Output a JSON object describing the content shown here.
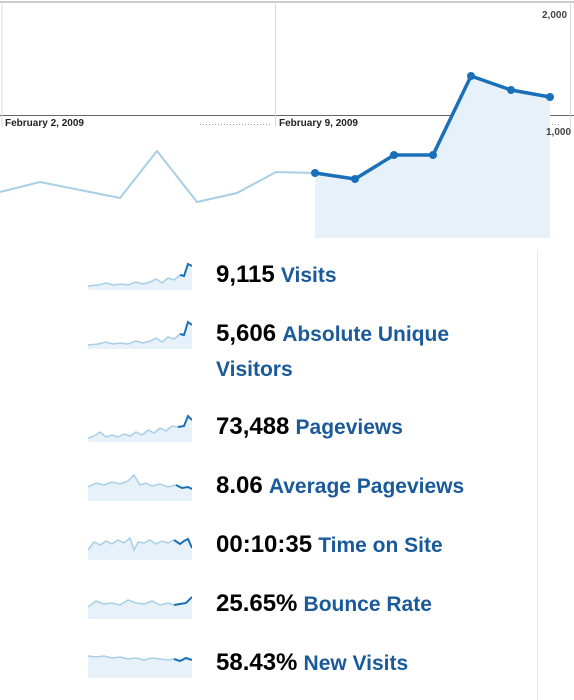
{
  "colors": {
    "line_dark": "#1a70b8",
    "line_light": "#a8cfe6",
    "area_fill": "#e6f1f9",
    "grid": "#bbbbbb",
    "label": "#1a5a9a"
  },
  "chart": {
    "y_ticks": [
      "2,000",
      "1,000"
    ],
    "x_labels": [
      "February 2, 2009",
      "February 9, 2009"
    ]
  },
  "metrics": [
    {
      "value": "9,115",
      "label": "Visits",
      "icon": "sparkline-icon"
    },
    {
      "value": "5,606",
      "label": "Absolute Unique Visitors",
      "icon": "sparkline-icon"
    },
    {
      "value": "73,488",
      "label": "Pageviews",
      "icon": "sparkline-icon"
    },
    {
      "value": "8.06",
      "label": "Average Pageviews",
      "icon": "sparkline-icon"
    },
    {
      "value": "00:10:35",
      "label": "Time on Site",
      "icon": "sparkline-icon"
    },
    {
      "value": "25.65%",
      "label": "Bounce Rate",
      "icon": "sparkline-icon"
    },
    {
      "value": "58.43%",
      "label": "New Visits",
      "icon": "sparkline-icon"
    }
  ]
}
